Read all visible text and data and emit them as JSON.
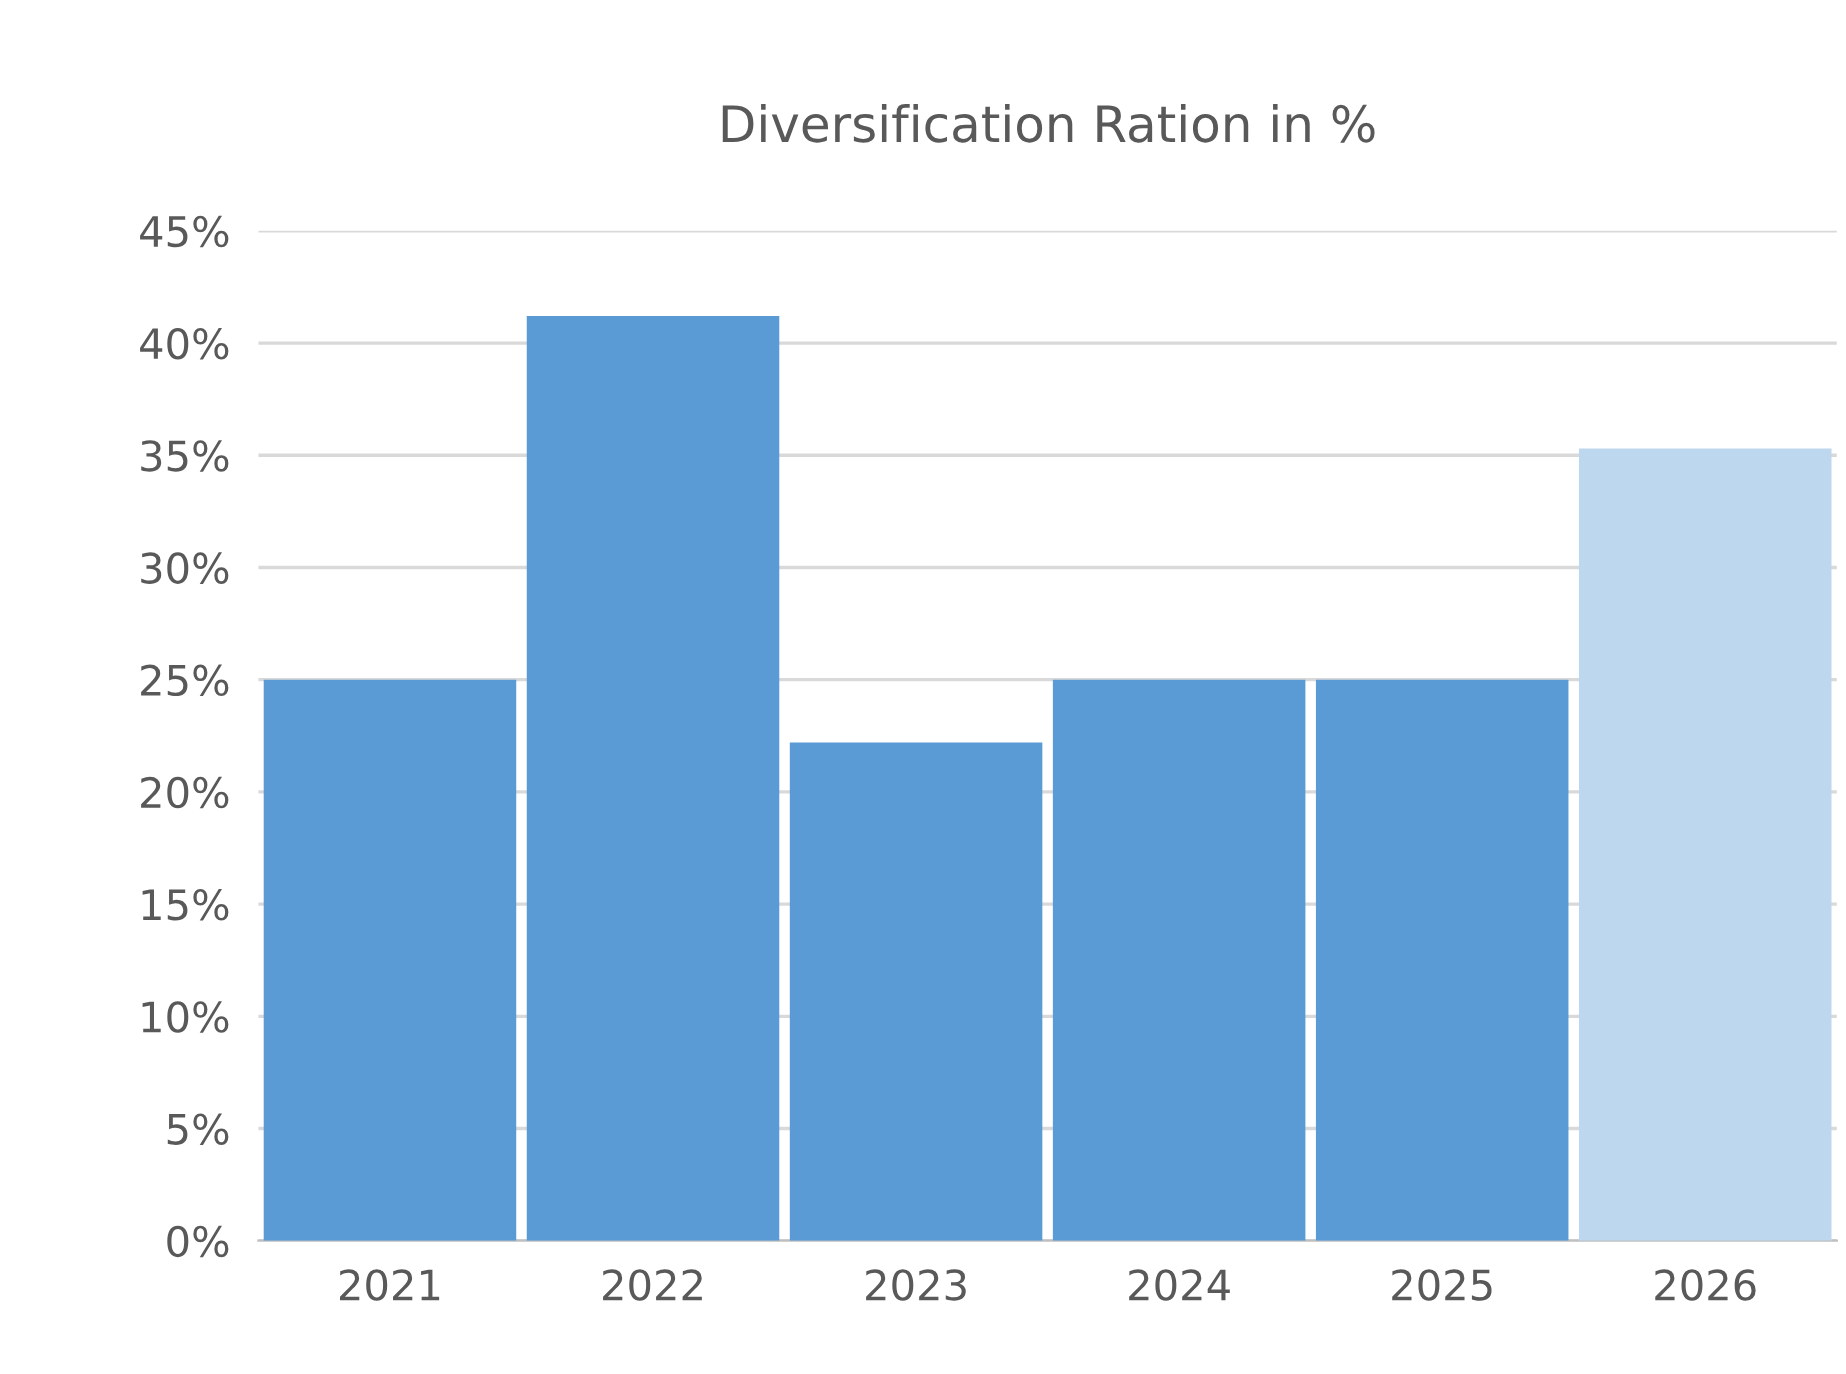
{
  "chart_data": {
    "type": "bar",
    "title": "Diversification Ration in %",
    "categories": [
      "2021",
      "2022",
      "2023",
      "2024",
      "2025",
      "2026"
    ],
    "values": [
      25,
      41.2,
      22.2,
      25,
      25,
      35.3
    ],
    "colors": [
      "#5b9bd5",
      "#5b9bd5",
      "#5b9bd5",
      "#5b9bd5",
      "#5b9bd5",
      "#bdd7ee"
    ],
    "ylim": [
      0,
      45
    ],
    "yticks": [
      {
        "value": 0,
        "label": "0%"
      },
      {
        "value": 5,
        "label": "5%"
      },
      {
        "value": 10,
        "label": "10%"
      },
      {
        "value": 15,
        "label": "15%"
      },
      {
        "value": 20,
        "label": "20%"
      },
      {
        "value": 25,
        "label": "25%"
      },
      {
        "value": 30,
        "label": "30%"
      },
      {
        "value": 35,
        "label": "35%"
      },
      {
        "value": 40,
        "label": "40%"
      },
      {
        "value": 45,
        "label": "45%"
      }
    ],
    "grid": "y"
  }
}
